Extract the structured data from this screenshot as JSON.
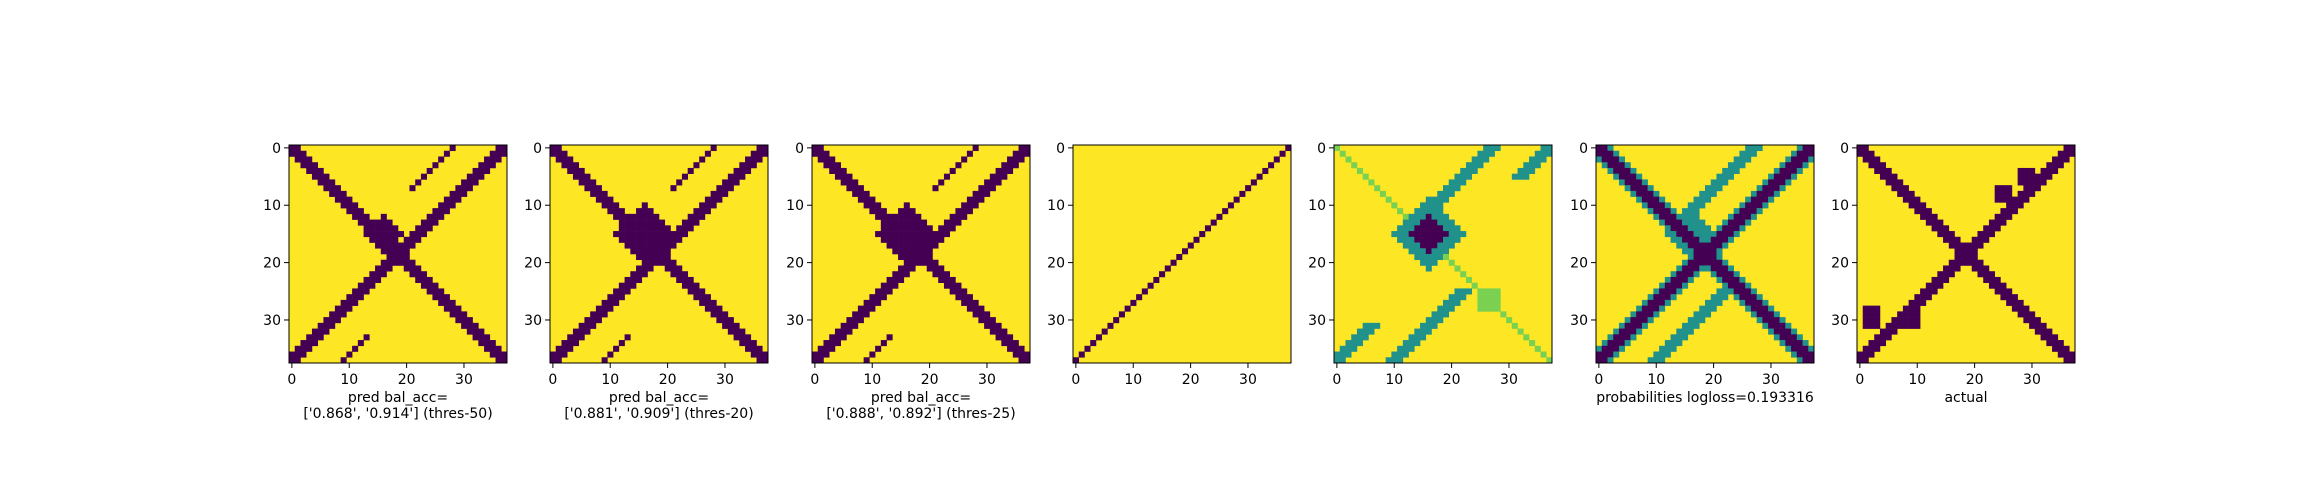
{
  "colors": {
    "low": "#440154",
    "mid": "#21918c",
    "high": "#fde725"
  },
  "chart_data": [
    {
      "type": "heatmap",
      "xlabel_lines": [
        "pred bal_acc=",
        "['0.868', '0.914'] (thres-50)"
      ],
      "xticks": [
        0,
        10,
        20,
        30
      ],
      "yticks": [
        0,
        10,
        20,
        30
      ],
      "size": 38,
      "pattern": "pred50"
    },
    {
      "type": "heatmap",
      "xlabel_lines": [
        "pred bal_acc=",
        "['0.881', '0.909'] (thres-20)"
      ],
      "xticks": [
        0,
        10,
        20,
        30
      ],
      "yticks": [
        0,
        10,
        20,
        30
      ],
      "size": 38,
      "pattern": "pred20"
    },
    {
      "type": "heatmap",
      "xlabel_lines": [
        "pred bal_acc=",
        "['0.888', '0.892'] (thres-25)"
      ],
      "xticks": [
        0,
        10,
        20,
        30
      ],
      "yticks": [
        0,
        10,
        20,
        30
      ],
      "size": 38,
      "pattern": "pred25"
    },
    {
      "type": "heatmap",
      "xlabel_lines": [],
      "xticks": [
        0,
        10,
        20,
        30
      ],
      "yticks": [
        0,
        10,
        20,
        30
      ],
      "size": 38,
      "pattern": "anti"
    },
    {
      "type": "heatmap",
      "xlabel_lines": [],
      "xticks": [
        0,
        10,
        20,
        30
      ],
      "yticks": [
        0,
        10,
        20,
        30
      ],
      "size": 38,
      "pattern": "soft"
    },
    {
      "type": "heatmap",
      "xlabel_lines": [
        "probabilities logloss=0.193316"
      ],
      "xticks": [
        0,
        10,
        20,
        30
      ],
      "yticks": [
        0,
        10,
        20,
        30
      ],
      "size": 38,
      "pattern": "prob"
    },
    {
      "type": "heatmap",
      "xlabel_lines": [
        "actual"
      ],
      "xticks": [
        0,
        10,
        20,
        30
      ],
      "yticks": [
        0,
        10,
        20,
        30
      ],
      "size": 38,
      "pattern": "actual"
    }
  ]
}
